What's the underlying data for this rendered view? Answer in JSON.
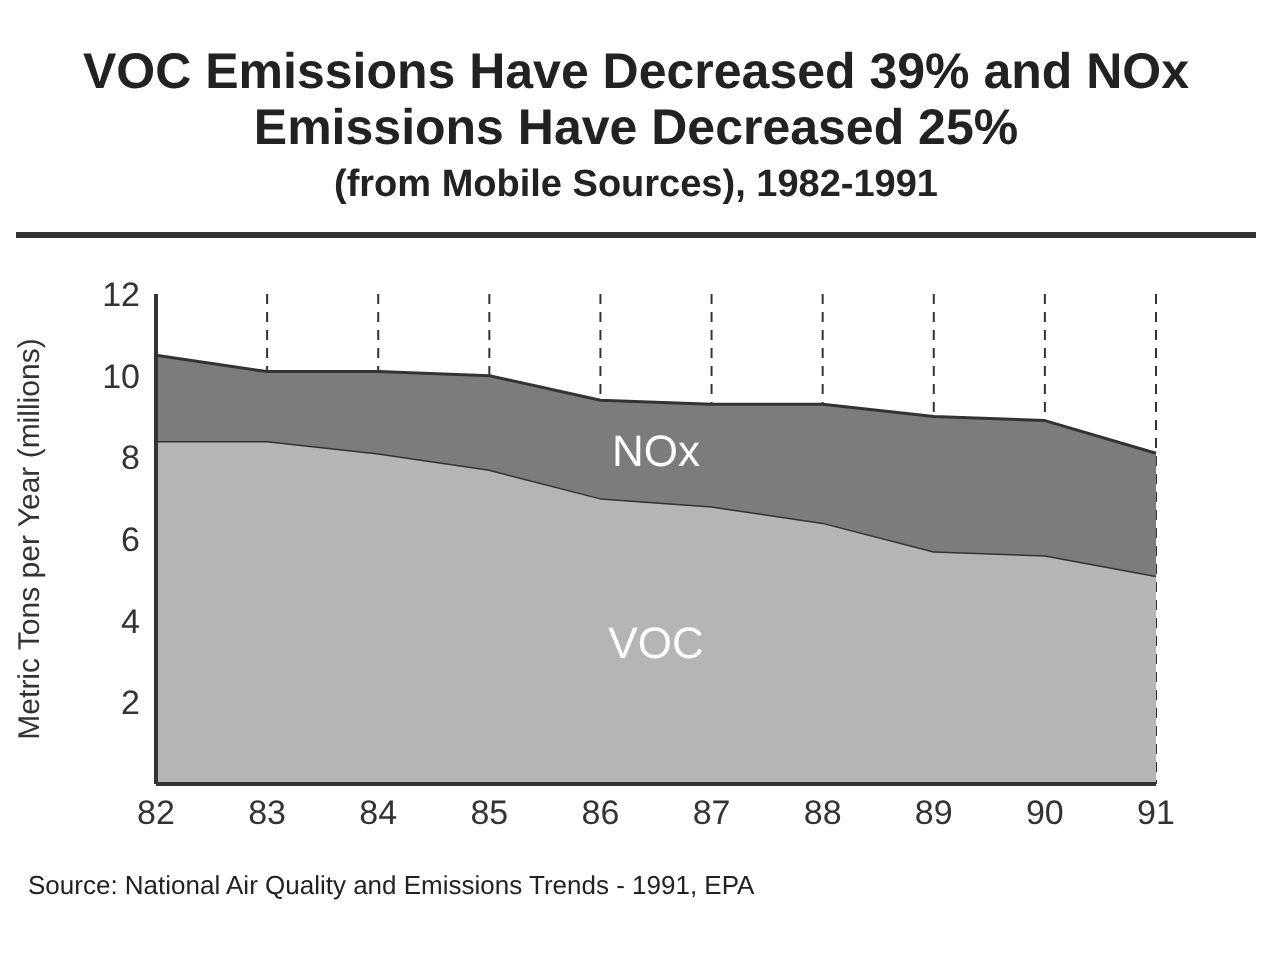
{
  "chart_data": {
    "type": "area",
    "stacked": true,
    "title": "VOC Emissions Have Decreased 39% and NOx Emissions Have Decreased 25%",
    "subtitle": "(from Mobile Sources), 1982-1991",
    "ylabel": "Metric Tons per Year (millions)",
    "categories": [
      "82",
      "83",
      "84",
      "85",
      "86",
      "87",
      "88",
      "89",
      "90",
      "91"
    ],
    "series": [
      {
        "name": "VOC",
        "color": "#b5b5b5",
        "values": [
          8.4,
          8.4,
          8.1,
          7.7,
          7.0,
          6.8,
          6.4,
          5.7,
          5.6,
          5.1
        ]
      },
      {
        "name": "NOx",
        "color": "#7c7c7c",
        "values": [
          2.1,
          1.7,
          2.0,
          2.3,
          2.4,
          2.5,
          2.9,
          3.3,
          3.3,
          3.0
        ]
      }
    ],
    "ylim": [
      0,
      12
    ],
    "yticks": [
      2,
      4,
      6,
      8,
      10,
      12
    ],
    "grid": "x",
    "legend": false,
    "annotations": [
      "Source: National Air Quality and Emissions Trends - 1991, EPA"
    ]
  }
}
